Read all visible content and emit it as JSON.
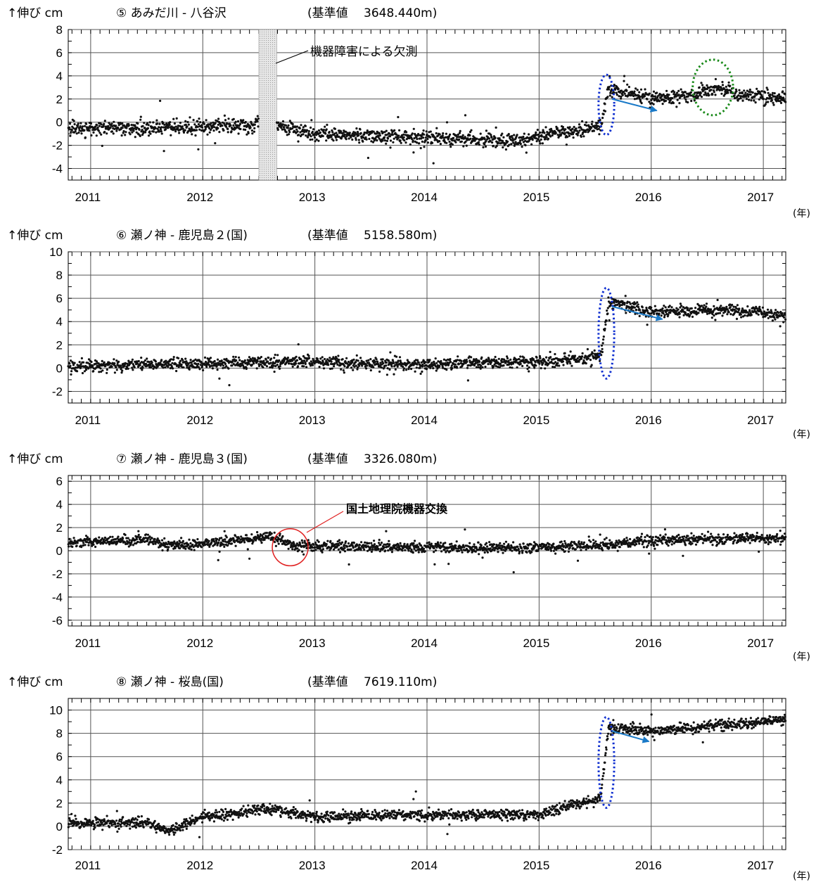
{
  "chart_data": [
    {
      "type": "scatter",
      "ylabel": "↑伸び cm",
      "title": "⑤ あみだ川 - 八谷沢",
      "reference": "(基準値　 3648.440m)",
      "x_unit": "(年)",
      "xlim": [
        2010.8,
        2017.2
      ],
      "ylim": [
        -5,
        8
      ],
      "yticks": [
        -4,
        -2,
        0,
        2,
        4,
        6,
        8
      ],
      "xticks": [
        "2011",
        "2012",
        "2013",
        "2014",
        "2015",
        "2016",
        "2017"
      ],
      "gap": [
        2012.5,
        2012.66
      ],
      "trend": [
        [
          2010.8,
          -0.5
        ],
        [
          2011.5,
          -0.5
        ],
        [
          2012.45,
          -0.3
        ],
        [
          2012.5,
          0.3
        ],
        [
          2012.7,
          -0.3
        ],
        [
          2013.0,
          -1.0
        ],
        [
          2014.0,
          -1.3
        ],
        [
          2014.3,
          -1.5
        ],
        [
          2014.8,
          -1.6
        ],
        [
          2015.1,
          -1.0
        ],
        [
          2015.55,
          -0.4
        ],
        [
          2015.62,
          3.0
        ],
        [
          2016.0,
          2.0
        ],
        [
          2016.4,
          2.4
        ],
        [
          2016.6,
          3.0
        ],
        [
          2016.8,
          2.3
        ],
        [
          2017.2,
          2.1
        ]
      ],
      "noise": 0.38,
      "annotations": [
        {
          "text": "機器障害による欠測",
          "type": "callout"
        },
        {
          "type": "ellipse",
          "color": "#1030d0",
          "center": [
            2015.6,
            1.5
          ],
          "radii": [
            0.07,
            2.6
          ]
        },
        {
          "type": "ellipse",
          "color": "#1a8a1a",
          "center": [
            2016.55,
            3.0
          ],
          "radii": [
            0.18,
            2.4
          ]
        },
        {
          "type": "arrow",
          "color": "#1a7ac8",
          "from": [
            2015.65,
            2.0
          ],
          "to": [
            2016.05,
            1.0
          ]
        }
      ]
    },
    {
      "type": "scatter",
      "ylabel": "↑伸び cm",
      "title": "⑥ 瀬ノ神 - 鹿児島２(国)",
      "reference": "(基準値　 5158.580m)",
      "x_unit": "(年)",
      "xlim": [
        2010.8,
        2017.2
      ],
      "ylim": [
        -3,
        10
      ],
      "yticks": [
        -2,
        0,
        2,
        4,
        6,
        8,
        10
      ],
      "xticks": [
        "2011",
        "2012",
        "2013",
        "2014",
        "2015",
        "2016",
        "2017"
      ],
      "trend": [
        [
          2010.8,
          0.2
        ],
        [
          2011.5,
          0.3
        ],
        [
          2012.5,
          0.5
        ],
        [
          2013.0,
          0.5
        ],
        [
          2014.0,
          0.3
        ],
        [
          2014.5,
          0.5
        ],
        [
          2015.0,
          0.5
        ],
        [
          2015.55,
          1.0
        ],
        [
          2015.62,
          5.7
        ],
        [
          2016.0,
          4.8
        ],
        [
          2016.6,
          5.0
        ],
        [
          2017.0,
          4.8
        ],
        [
          2017.2,
          4.4
        ]
      ],
      "noise": 0.32,
      "annotations": [
        {
          "type": "ellipse",
          "color": "#1030d0",
          "center": [
            2015.6,
            3.0
          ],
          "radii": [
            0.07,
            3.9
          ]
        },
        {
          "type": "arrow",
          "color": "#1a7ac8",
          "from": [
            2015.65,
            5.3
          ],
          "to": [
            2016.1,
            4.2
          ]
        }
      ]
    },
    {
      "type": "scatter",
      "ylabel": "↑伸び cm",
      "title": "⑦ 瀬ノ神 - 鹿児島３(国)",
      "reference": "(基準値　 3326.080m)",
      "x_unit": "(年)",
      "xlim": [
        2010.8,
        2017.2
      ],
      "ylim": [
        -6.5,
        6.5
      ],
      "yticks": [
        -6,
        -4,
        -2,
        0,
        2,
        4,
        6
      ],
      "xticks": [
        "2011",
        "2012",
        "2013",
        "2014",
        "2015",
        "2016",
        "2017"
      ],
      "trend": [
        [
          2010.8,
          0.7
        ],
        [
          2011.5,
          0.9
        ],
        [
          2011.7,
          0.5
        ],
        [
          2012.0,
          0.6
        ],
        [
          2012.6,
          1.2
        ],
        [
          2012.8,
          0.5
        ],
        [
          2013.0,
          0.4
        ],
        [
          2014.0,
          0.3
        ],
        [
          2014.5,
          0.2
        ],
        [
          2015.0,
          0.3
        ],
        [
          2015.6,
          0.5
        ],
        [
          2016.0,
          0.9
        ],
        [
          2016.5,
          1.0
        ],
        [
          2017.2,
          1.1
        ]
      ],
      "noise": 0.28,
      "annotations": [
        {
          "text": "国土地理院機器交換",
          "type": "callout"
        },
        {
          "type": "circle",
          "color": "#e02020",
          "center": [
            2012.78,
            0.3
          ],
          "radii": [
            0.16,
            1.6
          ]
        }
      ]
    },
    {
      "type": "scatter",
      "ylabel": "↑伸び cm",
      "title": "⑧ 瀬ノ神 - 桜島(国)",
      "reference": "(基準値　 7619.110m)",
      "x_unit": "(年)",
      "xlim": [
        2010.8,
        2017.2
      ],
      "ylim": [
        -2,
        11
      ],
      "yticks": [
        -2,
        0,
        2,
        4,
        6,
        8,
        10
      ],
      "xticks": [
        "2011",
        "2012",
        "2013",
        "2014",
        "2015",
        "2016",
        "2017"
      ],
      "trend": [
        [
          2010.8,
          0.3
        ],
        [
          2011.5,
          0.3
        ],
        [
          2011.7,
          -0.4
        ],
        [
          2012.0,
          0.8
        ],
        [
          2012.6,
          1.5
        ],
        [
          2013.0,
          0.8
        ],
        [
          2014.0,
          1.0
        ],
        [
          2015.0,
          1.0
        ],
        [
          2015.55,
          2.5
        ],
        [
          2015.62,
          8.5
        ],
        [
          2016.0,
          8.2
        ],
        [
          2016.5,
          8.6
        ],
        [
          2017.2,
          9.2
        ]
      ],
      "noise": 0.28,
      "annotations": [
        {
          "type": "ellipse",
          "color": "#1030d0",
          "center": [
            2015.6,
            5.5
          ],
          "radii": [
            0.07,
            3.9
          ]
        },
        {
          "type": "arrow",
          "color": "#1a7ac8",
          "from": [
            2015.65,
            8.2
          ],
          "to": [
            2015.98,
            7.3
          ]
        }
      ]
    }
  ]
}
